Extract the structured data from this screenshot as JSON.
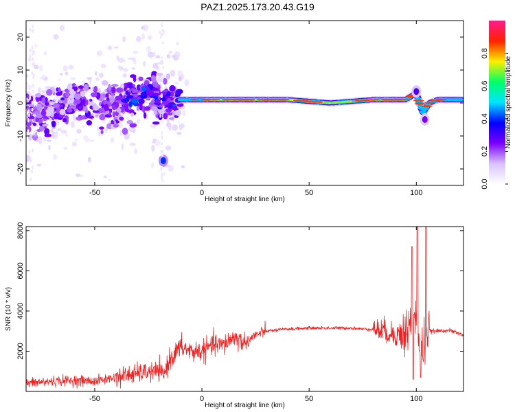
{
  "title": "PAZ1.2025.173.20.43.G19",
  "colors": {
    "snr_line": "#ee2222",
    "background": "#ffffff",
    "colormap": [
      "#ffffff",
      "#d9c2ff",
      "#7a00ff",
      "#0000ff",
      "#00e5ff",
      "#00ff66",
      "#ffee00",
      "#ff2200",
      "#ff1a8c"
    ]
  },
  "chart_data": [
    {
      "type": "heatmap",
      "xlabel": "Height of straight line (km)",
      "ylabel": "Frequency (Hz)",
      "xlim": [
        -82,
        122
      ],
      "ylim": [
        -25,
        25
      ],
      "xticks": [
        -50,
        0,
        50,
        100
      ],
      "yticks": [
        -20,
        -10,
        0,
        10,
        20
      ],
      "colorbar": {
        "label": "Normalized spectral amplitude",
        "range": [
          0,
          1
        ],
        "ticks": [
          "0.0",
          "0.2",
          "0.4",
          "0.6",
          "0.8"
        ]
      },
      "ridge": [
        {
          "x": -80,
          "y": -3
        },
        {
          "x": -70,
          "y": -2
        },
        {
          "x": -60,
          "y": 0
        },
        {
          "x": -50,
          "y": -1
        },
        {
          "x": -40,
          "y": 0
        },
        {
          "x": -35,
          "y": 1
        },
        {
          "x": -30,
          "y": 2
        },
        {
          "x": -25,
          "y": 4
        },
        {
          "x": -20,
          "y": 1
        },
        {
          "x": -15,
          "y": 0
        },
        {
          "x": -10,
          "y": 1
        },
        {
          "x": 0,
          "y": 1
        },
        {
          "x": 10,
          "y": 1
        },
        {
          "x": 20,
          "y": 1
        },
        {
          "x": 40,
          "y": 1
        },
        {
          "x": 60,
          "y": 0
        },
        {
          "x": 80,
          "y": 1
        },
        {
          "x": 95,
          "y": 1
        },
        {
          "x": 100,
          "y": 3
        },
        {
          "x": 103,
          "y": -3
        },
        {
          "x": 106,
          "y": 0
        },
        {
          "x": 110,
          "y": 1
        },
        {
          "x": 122,
          "y": 1
        }
      ],
      "features": [
        {
          "x": -18,
          "y": -17.5,
          "amplitude": 0.4
        },
        {
          "x": 100,
          "y": 3.5,
          "amplitude": 0.3
        },
        {
          "x": 104,
          "y": -5,
          "amplitude": 0.25
        }
      ]
    },
    {
      "type": "line",
      "xlabel": "Height of straight line (km)",
      "ylabel": "SNR (10 * v/v)",
      "xlim": [
        -82,
        122
      ],
      "ylim": [
        0,
        8200
      ],
      "xticks": [
        -50,
        0,
        50,
        100
      ],
      "yticks": [
        2000,
        4000,
        6000,
        8000
      ],
      "series": [
        {
          "x": [
            -82,
            -70,
            -60,
            -50,
            -40,
            -30,
            -20,
            -18,
            -15,
            -10,
            -5,
            0,
            5,
            10,
            15,
            20,
            25,
            30,
            40,
            50,
            60,
            70,
            75,
            80,
            85,
            90,
            95,
            98,
            100,
            102,
            104,
            106,
            110,
            115,
            122
          ],
          "y": [
            400,
            500,
            550,
            500,
            700,
            900,
            1000,
            800,
            1600,
            2200,
            2000,
            2000,
            2300,
            2300,
            2700,
            2400,
            2800,
            3000,
            3100,
            3150,
            3150,
            3150,
            3100,
            3100,
            3000,
            2800,
            2900,
            3500,
            3800,
            2000,
            2500,
            3000,
            3000,
            3050,
            2800
          ]
        }
      ],
      "spikes": [
        {
          "x": 98,
          "y": 7200
        },
        {
          "x": 100.5,
          "y": 8200
        },
        {
          "x": 104.5,
          "y": 8200
        },
        {
          "x": 102,
          "y": 700
        },
        {
          "x": 98.5,
          "y": 600
        }
      ]
    }
  ]
}
